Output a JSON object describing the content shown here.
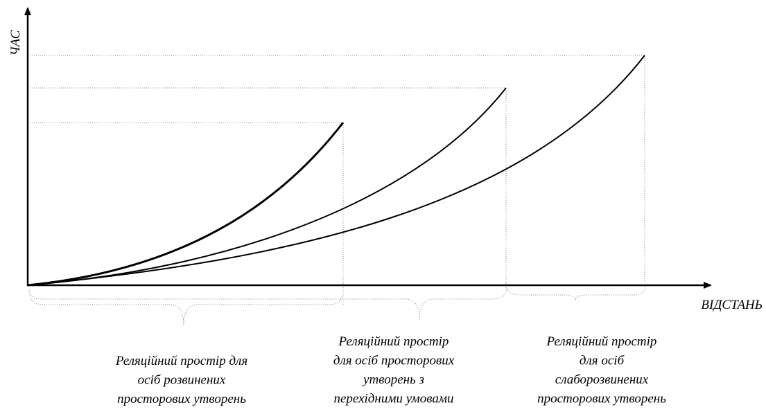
{
  "axes": {
    "y_label": "ЧАС",
    "x_label": "ВІДСТАНЬ"
  },
  "regions": [
    {
      "lines": [
        "Реляційний простір для",
        "осіб розвинених",
        "просторових утворень"
      ]
    },
    {
      "lines": [
        "Реляційний простір",
        "для осіб просторових",
        "утворень з",
        "перехідними умовами"
      ]
    },
    {
      "lines": [
        "Реляційний простір",
        "для осіб",
        "слаборозвинених",
        "просторових утворень"
      ]
    }
  ]
}
